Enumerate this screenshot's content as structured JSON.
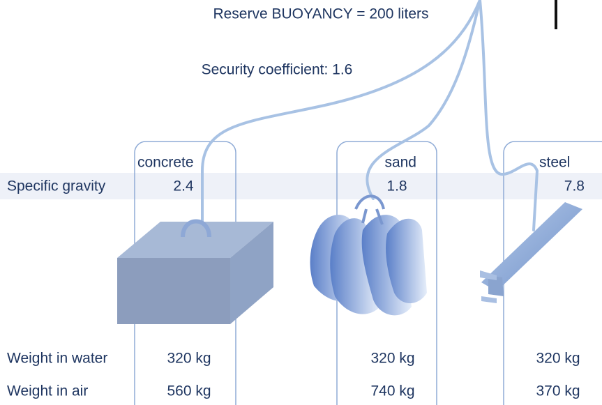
{
  "header": {
    "buoyancy": "Reserve BUOYANCY = 200 liters",
    "coefficient": "Security coefficient: 1.6"
  },
  "rows": [
    "Specific gravity",
    "Weight in water",
    "Weight in air"
  ],
  "columns": [
    {
      "material": "concrete",
      "specific_gravity": "2.4",
      "weight_in_water": "320 kg",
      "weight_in_air": "560 kg"
    },
    {
      "material": "sand",
      "specific_gravity": "1.8",
      "weight_in_water": "320 kg",
      "weight_in_air": "740 kg"
    },
    {
      "material": "steel",
      "specific_gravity": "7.8",
      "weight_in_water": "320 kg",
      "weight_in_air": "370 kg"
    }
  ]
}
